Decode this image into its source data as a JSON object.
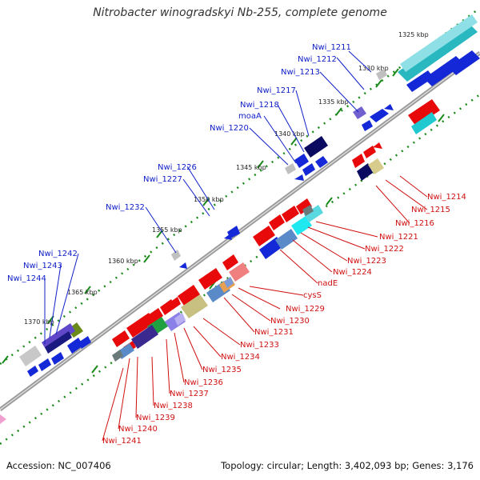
{
  "title": "Nitrobacter winogradskyi Nb-255, complete genome",
  "footer": {
    "accession": "Accession: NC_007406",
    "summary": "Topology: circular; Length: 3,402,093 bp; Genes: 3,176"
  },
  "ticks": [
    "1325 kbp",
    "1330 kbp",
    "1335 kbp",
    "1340 kbp",
    "1345 kbp",
    "1350 kbp",
    "1355 kbp",
    "1360 kbp",
    "1365 kbp",
    "1370 kbp"
  ],
  "forward_labels": [
    "Nwi_1211",
    "Nwi_1212",
    "Nwi_1213",
    "Nwi_1217",
    "Nwi_1218",
    "moaA",
    "Nwi_1220",
    "Nwi_1226",
    "Nwi_1227",
    "Nwi_1232",
    "Nwi_1242",
    "Nwi_1243",
    "Nwi_1244"
  ],
  "reverse_labels": [
    "Nwi_1214",
    "Nwi_1215",
    "Nwi_1216",
    "Nwi_1221",
    "Nwi_1222",
    "Nwi_1223",
    "Nwi_1224",
    "nadE",
    "cysS",
    "Nwi_1229",
    "Nwi_1230",
    "Nwi_1231",
    "Nwi_1233",
    "Nwi_1234",
    "Nwi_1235",
    "Nwi_1236",
    "Nwi_1237",
    "Nwi_1238",
    "Nwi_1239",
    "Nwi_1240",
    "Nwi_1241"
  ],
  "colors": {
    "backbone": "#8f8f8f",
    "forward_label": "#1020c8",
    "reverse_label": "#d01010",
    "tick": "#1a8a1a"
  }
}
